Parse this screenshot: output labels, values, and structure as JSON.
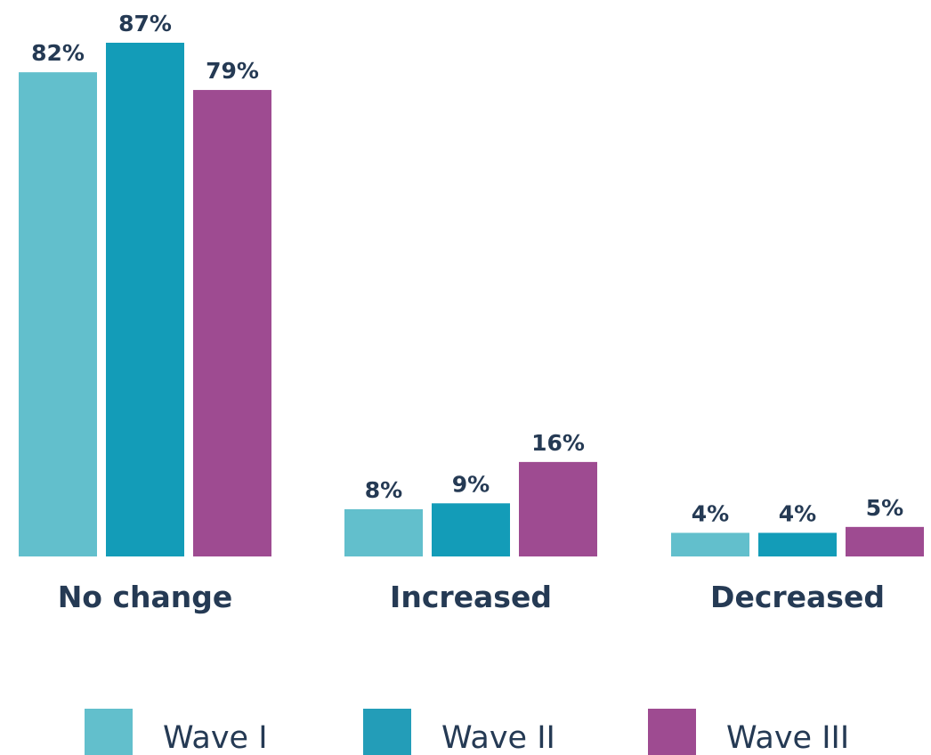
{
  "colors": {
    "text": "#253a54",
    "series": [
      "#62bfcc",
      "#139cb8",
      "#9e4b91"
    ],
    "legend_swatches": [
      "#62bfcc",
      "#239db8",
      "#9e4b91"
    ]
  },
  "chart_data": {
    "type": "bar",
    "title": "",
    "xlabel": "",
    "ylabel": "",
    "ylim": [
      0,
      87
    ],
    "grid": false,
    "legend_position": "bottom",
    "categories": [
      "No change",
      "Increased",
      "Decreased"
    ],
    "series": [
      {
        "name": "Wave I",
        "values": [
          82,
          8,
          4
        ],
        "labels": [
          "82%",
          "8%",
          "4%"
        ]
      },
      {
        "name": "Wave II",
        "values": [
          87,
          9,
          4
        ],
        "labels": [
          "87%",
          "9%",
          "4%"
        ]
      },
      {
        "name": "Wave III",
        "values": [
          79,
          16,
          5
        ],
        "labels": [
          "79%",
          "16%",
          "5%"
        ]
      }
    ]
  }
}
